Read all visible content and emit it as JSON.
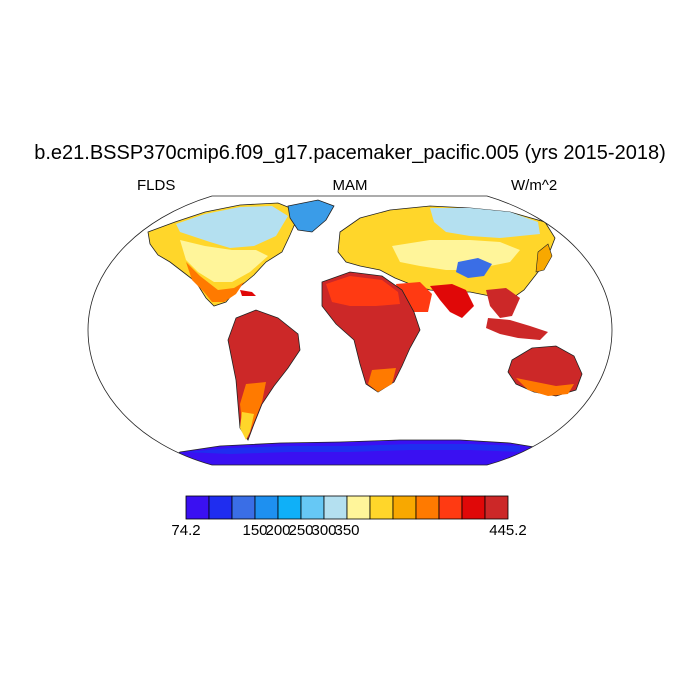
{
  "title": "b.e21.BSSP370cmip6.f09_g17.pacemaker_pacific.005 (yrs 2015-2018)",
  "left_label": "FLDS",
  "center_label": "MAM",
  "right_label": "W/m^2",
  "colorbar": {
    "colors": [
      "#3a10f2",
      "#1f2df0",
      "#3a6ee6",
      "#1e90f0",
      "#0fb0f8",
      "#66c8f5",
      "#b4e0f0",
      "#fff59a",
      "#ffd62a",
      "#f8a800",
      "#ff7a00",
      "#ff3a12",
      "#e00808",
      "#cc2828"
    ],
    "labels": [
      "74.2",
      "150",
      "200",
      "250",
      "300",
      "350",
      "445.2"
    ],
    "label_slots": [
      0,
      3,
      4,
      5,
      6,
      7,
      9
    ]
  }
}
